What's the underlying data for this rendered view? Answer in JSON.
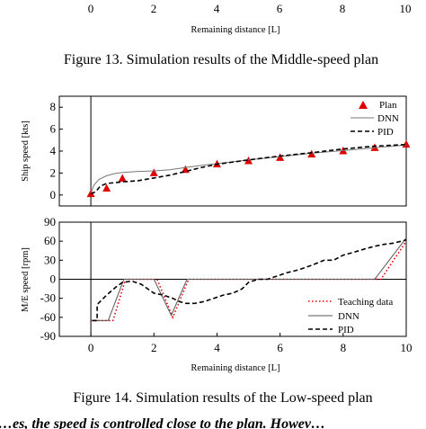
{
  "top_fragment": {
    "x_tick_labels": [
      "0",
      "2",
      "4",
      "6",
      "8",
      "10"
    ],
    "xlabel": "Remaining distance [L]"
  },
  "figure13_caption": "Figure 13. Simulation results of the Middle-speed plan",
  "figure14_caption": "Figure 14. Simulation results of the Low-speed plan",
  "body_text_fragment": "…es, the speed is controlled close to the plan. Howev…",
  "chart_data": [
    {
      "type": "line",
      "panel": "upper",
      "ylabel": "Ship speed [kts]",
      "xlim": [
        -1,
        10
      ],
      "ylim": [
        -1,
        9
      ],
      "y_ticks": [
        0,
        2,
        4,
        6,
        8
      ],
      "legend_position": "top-right",
      "series": [
        {
          "name": "Plan",
          "style": "markers",
          "color": "#e00000",
          "x": [
            0,
            0.5,
            1,
            2,
            3,
            4,
            5,
            6,
            7,
            8,
            9,
            10
          ],
          "y": [
            0.1,
            0.6,
            1.5,
            2.0,
            2.3,
            2.8,
            3.1,
            3.4,
            3.7,
            4.0,
            4.3,
            4.6
          ]
        },
        {
          "name": "DNN",
          "style": "solid",
          "color": "#777777",
          "x": [
            0,
            0.1,
            0.25,
            0.5,
            0.75,
            1,
            1.5,
            2,
            2.5,
            3,
            3.5,
            4,
            5,
            6,
            7,
            8,
            9,
            10
          ],
          "y": [
            0.2,
            0.9,
            1.4,
            1.75,
            1.95,
            2.05,
            2.15,
            2.2,
            2.3,
            2.5,
            2.7,
            2.85,
            3.2,
            3.5,
            3.8,
            4.05,
            4.3,
            4.55
          ]
        },
        {
          "name": "PID",
          "style": "dashed",
          "color": "#000000",
          "x": [
            0,
            0.15,
            0.3,
            0.5,
            1,
            1.5,
            2,
            2.5,
            3,
            3.5,
            4,
            4.5,
            5,
            6,
            7,
            8,
            9,
            10
          ],
          "y": [
            0.1,
            0.3,
            0.8,
            1.05,
            1.2,
            1.3,
            1.55,
            1.8,
            2.15,
            2.5,
            2.8,
            3.0,
            3.2,
            3.55,
            3.85,
            4.2,
            4.45,
            4.6
          ]
        }
      ]
    },
    {
      "type": "line",
      "panel": "lower",
      "ylabel": "M/E speed [rpm]",
      "xlabel": "Remaining distance [L]",
      "xlim": [
        -1,
        10
      ],
      "ylim": [
        -90,
        90
      ],
      "y_ticks": [
        -90,
        -60,
        -30,
        0,
        30,
        60,
        90
      ],
      "y_tick_labels": [
        "-90",
        "-60",
        "-30",
        "0",
        "30",
        "60",
        "90"
      ],
      "x_ticks": [
        0,
        2,
        4,
        6,
        8,
        10
      ],
      "x_tick_labels": [
        "0",
        "2",
        "4",
        "6",
        "8",
        "10"
      ],
      "legend_position": "bottom-right",
      "series": [
        {
          "name": "Teaching data",
          "style": "dotted",
          "color": "#e00000",
          "x": [
            0,
            0.7,
            1.1,
            2.1,
            2.6,
            3.1,
            9.2,
            10
          ],
          "y": [
            -65,
            -65,
            0,
            0,
            -60,
            0,
            0,
            60
          ]
        },
        {
          "name": "DNN",
          "style": "solid",
          "color": "#555555",
          "x": [
            0,
            0.55,
            1.05,
            2.0,
            2.55,
            3.05,
            9.0,
            10
          ],
          "y": [
            -65,
            -65,
            0,
            0,
            -57,
            0,
            0,
            65
          ]
        },
        {
          "name": "PID",
          "style": "dashed",
          "color": "#000000",
          "x": [
            0.05,
            0.2,
            0.2,
            0.5,
            0.8,
            1.0,
            1.3,
            1.6,
            1.8,
            2.0,
            2.3,
            2.6,
            2.8,
            3.0,
            3.3,
            3.6,
            3.9,
            4.2,
            4.5,
            4.8,
            5.0,
            5.3,
            5.6,
            5.9,
            6.2,
            6.6,
            7.0,
            7.4,
            7.7,
            8.0,
            8.3,
            8.7,
            9.0,
            9.3,
            9.6,
            10
          ],
          "y": [
            -65,
            -65,
            -40,
            -25,
            -12,
            -5,
            -3,
            -8,
            -15,
            -22,
            -25,
            -30,
            -35,
            -38,
            -38,
            -35,
            -30,
            -25,
            -22,
            -15,
            -5,
            0,
            0,
            5,
            10,
            15,
            22,
            30,
            30,
            38,
            42,
            48,
            52,
            55,
            57,
            62
          ]
        }
      ]
    }
  ]
}
